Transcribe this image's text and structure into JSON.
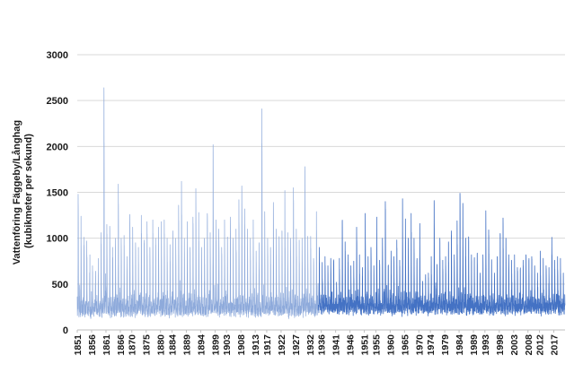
{
  "chart_data": {
    "type": "line",
    "title": "",
    "xlabel": "",
    "ylabel": "Vattenföring Fäggeby/Långhag (kubikmeter per sekund)",
    "ylabel_lines": [
      "Vattenföring Fäggeby/Långhag",
      "(kubikmeter per sekund)"
    ],
    "ylim": [
      0,
      3000
    ],
    "yticks": [
      0,
      500,
      1000,
      1500,
      2000,
      2500,
      3000
    ],
    "xlim": [
      1851,
      2020.9
    ],
    "xticks": [
      1851,
      1856,
      1861,
      1866,
      1870,
      1875,
      1880,
      1884,
      1889,
      1894,
      1899,
      1903,
      1908,
      1913,
      1917,
      1922,
      1927,
      1932,
      1936,
      1941,
      1946,
      1951,
      1955,
      1960,
      1965,
      1970,
      1974,
      1979,
      1984,
      1989,
      1993,
      1998,
      2003,
      2008,
      2012,
      2017
    ],
    "grid": true,
    "legend": "none",
    "resolution": "daily values, approximated here at weekly resolution",
    "series": [
      {
        "color_early": "#8eaadb",
        "color_late": "#4472c4",
        "peaks": [
          [
            1851.3,
            1480
          ],
          [
            1852.3,
            1240
          ],
          [
            1853.4,
            1010
          ],
          [
            1854.3,
            970
          ],
          [
            1855.4,
            820
          ],
          [
            1856.3,
            700
          ],
          [
            1857.4,
            640
          ],
          [
            1858.3,
            780
          ],
          [
            1859.3,
            1060
          ],
          [
            1860.3,
            2640
          ],
          [
            1861.3,
            1150
          ],
          [
            1862.3,
            1130
          ],
          [
            1863.4,
            900
          ],
          [
            1864.3,
            1000
          ],
          [
            1865.3,
            1590
          ],
          [
            1866.3,
            1000
          ],
          [
            1867.3,
            1030
          ],
          [
            1868.3,
            800
          ],
          [
            1869.3,
            1260
          ],
          [
            1870.3,
            1120
          ],
          [
            1871.3,
            950
          ],
          [
            1872.3,
            900
          ],
          [
            1873.3,
            1250
          ],
          [
            1874.3,
            980
          ],
          [
            1875.3,
            1180
          ],
          [
            1876.3,
            900
          ],
          [
            1877.3,
            1200
          ],
          [
            1878.3,
            1000
          ],
          [
            1879.3,
            1120
          ],
          [
            1880.3,
            1180
          ],
          [
            1881.3,
            1200
          ],
          [
            1882.3,
            1000
          ],
          [
            1883.3,
            930
          ],
          [
            1884.3,
            1080
          ],
          [
            1885.3,
            1000
          ],
          [
            1886.3,
            1360
          ],
          [
            1887.3,
            1620
          ],
          [
            1888.3,
            1000
          ],
          [
            1889.3,
            1180
          ],
          [
            1890.3,
            900
          ],
          [
            1891.3,
            1230
          ],
          [
            1892.3,
            1540
          ],
          [
            1893.3,
            1280
          ],
          [
            1894.3,
            900
          ],
          [
            1895.3,
            1000
          ],
          [
            1896.3,
            1270
          ],
          [
            1897.3,
            1060
          ],
          [
            1898.3,
            2020
          ],
          [
            1899.3,
            1200
          ],
          [
            1900.3,
            1100
          ],
          [
            1901.3,
            900
          ],
          [
            1902.3,
            1200
          ],
          [
            1903.3,
            1010
          ],
          [
            1904.3,
            1230
          ],
          [
            1905.3,
            1000
          ],
          [
            1906.3,
            1100
          ],
          [
            1907.3,
            1420
          ],
          [
            1908.3,
            1570
          ],
          [
            1909.3,
            1320
          ],
          [
            1910.3,
            1100
          ],
          [
            1911.3,
            1000
          ],
          [
            1912.3,
            1200
          ],
          [
            1913.3,
            860
          ],
          [
            1914.3,
            950
          ],
          [
            1915.3,
            2410
          ],
          [
            1916.3,
            1290
          ],
          [
            1917.3,
            1000
          ],
          [
            1918.3,
            900
          ],
          [
            1919.3,
            1390
          ],
          [
            1920.3,
            1100
          ],
          [
            1921.3,
            1000
          ],
          [
            1922.3,
            1080
          ],
          [
            1923.3,
            1520
          ],
          [
            1924.3,
            1060
          ],
          [
            1925.3,
            1000
          ],
          [
            1926.3,
            1550
          ],
          [
            1927.3,
            1100
          ],
          [
            1928.3,
            980
          ],
          [
            1929.3,
            1000
          ],
          [
            1930.3,
            1780
          ],
          [
            1931.3,
            1020
          ],
          [
            1932.3,
            1020
          ],
          [
            1933.3,
            780
          ],
          [
            1934.3,
            1290
          ],
          [
            1935.3,
            900
          ],
          [
            1936.3,
            680
          ],
          [
            1937.3,
            800
          ],
          [
            1938.3,
            700
          ],
          [
            1939.3,
            780
          ],
          [
            1940.3,
            750
          ],
          [
            1941.3,
            520
          ],
          [
            1942.3,
            780
          ],
          [
            1943.3,
            1180
          ],
          [
            1944.3,
            960
          ],
          [
            1945.3,
            820
          ],
          [
            1946.3,
            700
          ],
          [
            1947.3,
            750
          ],
          [
            1948.3,
            1120
          ],
          [
            1949.3,
            820
          ],
          [
            1950.3,
            680
          ],
          [
            1951.3,
            1270
          ],
          [
            1952.3,
            800
          ],
          [
            1953.3,
            900
          ],
          [
            1954.3,
            700
          ],
          [
            1955.3,
            1230
          ],
          [
            1956.3,
            760
          ],
          [
            1957.3,
            1000
          ],
          [
            1958.3,
            1400
          ],
          [
            1959.3,
            700
          ],
          [
            1960.3,
            860
          ],
          [
            1961.3,
            800
          ],
          [
            1962.3,
            980
          ],
          [
            1963.3,
            760
          ],
          [
            1964.3,
            1430
          ],
          [
            1965.3,
            1210
          ],
          [
            1966.3,
            1000
          ],
          [
            1967.3,
            1270
          ],
          [
            1968.3,
            1000
          ],
          [
            1969.3,
            760
          ],
          [
            1970.3,
            1160
          ],
          [
            1971.3,
            520
          ],
          [
            1972.3,
            560
          ],
          [
            1973.3,
            620
          ],
          [
            1974.3,
            800
          ],
          [
            1975.3,
            1410
          ],
          [
            1976.3,
            700
          ],
          [
            1977.3,
            1000
          ],
          [
            1978.3,
            760
          ],
          [
            1979.3,
            800
          ],
          [
            1980.3,
            960
          ],
          [
            1981.3,
            1080
          ],
          [
            1982.3,
            820
          ],
          [
            1983.3,
            1190
          ],
          [
            1984.3,
            1490
          ],
          [
            1985.3,
            1380
          ],
          [
            1986.3,
            1000
          ],
          [
            1987.3,
            950
          ],
          [
            1988.3,
            820
          ],
          [
            1989.3,
            760
          ],
          [
            1990.3,
            820
          ],
          [
            1991.3,
            620
          ],
          [
            1992.3,
            820
          ],
          [
            1993.3,
            1300
          ],
          [
            1994.3,
            1090
          ],
          [
            1995.3,
            760
          ],
          [
            1996.3,
            620
          ],
          [
            1997.3,
            800
          ],
          [
            1998.3,
            1050
          ],
          [
            1999.3,
            1220
          ],
          [
            2000.3,
            1000
          ],
          [
            2001.3,
            820
          ],
          [
            2002.3,
            760
          ],
          [
            2003.3,
            820
          ],
          [
            2004.3,
            680
          ],
          [
            2005.3,
            660
          ],
          [
            2006.3,
            760
          ],
          [
            2007.3,
            820
          ],
          [
            2008.3,
            760
          ],
          [
            2009.3,
            800
          ],
          [
            2010.3,
            700
          ],
          [
            2011.3,
            620
          ],
          [
            2012.3,
            860
          ],
          [
            2013.3,
            780
          ],
          [
            2014.3,
            700
          ],
          [
            2015.3,
            680
          ],
          [
            2016.3,
            1010
          ],
          [
            2017.3,
            760
          ],
          [
            2018.3,
            800
          ],
          [
            2019.3,
            780
          ],
          [
            2020.3,
            620
          ]
        ]
      }
    ]
  }
}
